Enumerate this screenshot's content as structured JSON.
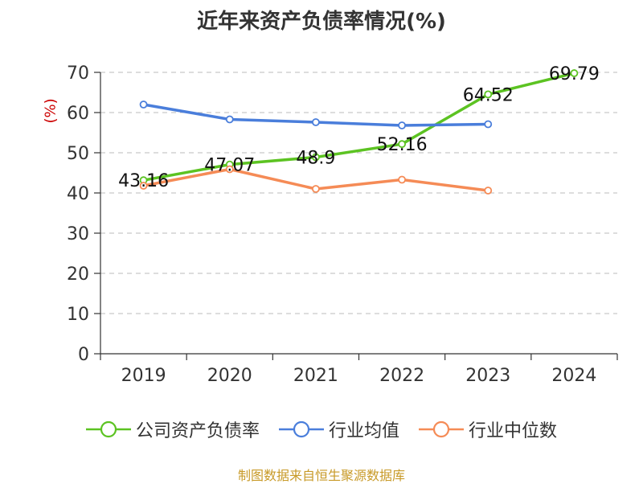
{
  "chart_data": {
    "type": "line",
    "title": "近年来资产负债率情况(%)",
    "ylabel": "(%)",
    "xlabel": "",
    "categories": [
      "2019",
      "2020",
      "2021",
      "2022",
      "2023",
      "2024"
    ],
    "ylim": [
      0,
      70
    ],
    "yticks": [
      0,
      10,
      20,
      30,
      40,
      50,
      60,
      70
    ],
    "grid": true,
    "legend_position": "bottom",
    "series": [
      {
        "name": "公司资产负债率",
        "color": "#5cc322",
        "values": [
          43.16,
          47.07,
          48.9,
          52.16,
          64.52,
          69.79
        ],
        "labels": [
          "43.16",
          "47.07",
          "48.9",
          "52.16",
          "64.52",
          "69.79"
        ]
      },
      {
        "name": "行业均值",
        "color": "#4a7edb",
        "values": [
          62.0,
          58.3,
          57.6,
          56.8,
          57.1,
          null
        ]
      },
      {
        "name": "行业中位数",
        "color": "#f58b56",
        "values": [
          41.8,
          45.9,
          41.0,
          43.3,
          40.6,
          null
        ]
      }
    ],
    "source": "制图数据来自恒生聚源数据库"
  }
}
